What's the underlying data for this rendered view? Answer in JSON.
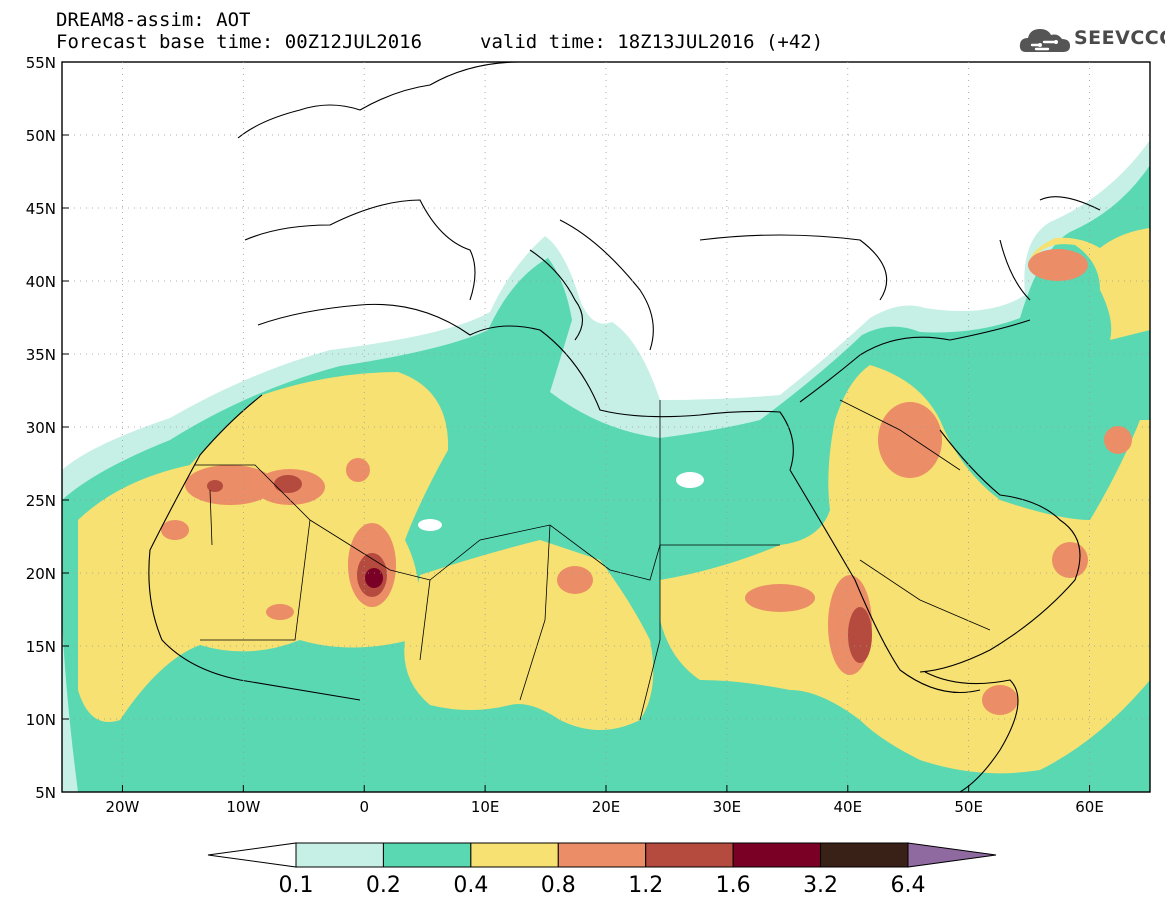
{
  "header": {
    "line1": "DREAM8-assim: AOT",
    "line2": "Forecast base time: 00Z12JUL2016",
    "line3": "valid time: 18Z13JUL2016 (+42)"
  },
  "logo": {
    "text": "SEEVCCC",
    "icon": "cloud-icon"
  },
  "map": {
    "lon_min": -25,
    "lon_max": 65,
    "lat_min": 5,
    "lat_max": 55,
    "lat_ticks": [
      {
        "value": 55,
        "label": "55N"
      },
      {
        "value": 50,
        "label": "50N"
      },
      {
        "value": 45,
        "label": "45N"
      },
      {
        "value": 40,
        "label": "40N"
      },
      {
        "value": 35,
        "label": "35N"
      },
      {
        "value": 30,
        "label": "30N"
      },
      {
        "value": 25,
        "label": "25N"
      },
      {
        "value": 20,
        "label": "20N"
      },
      {
        "value": 15,
        "label": "15N"
      },
      {
        "value": 10,
        "label": "10N"
      },
      {
        "value": 5,
        "label": "5N"
      }
    ],
    "lon_ticks": [
      {
        "value": -20,
        "label": "20W"
      },
      {
        "value": -10,
        "label": "10W"
      },
      {
        "value": 0,
        "label": "0"
      },
      {
        "value": 10,
        "label": "10E"
      },
      {
        "value": 20,
        "label": "20E"
      },
      {
        "value": 30,
        "label": "30E"
      },
      {
        "value": 40,
        "label": "40E"
      },
      {
        "value": 50,
        "label": "50E"
      },
      {
        "value": 60,
        "label": "60E"
      }
    ]
  },
  "colorbar": {
    "colors": [
      "#ffffff",
      "#c6f0e6",
      "#5ad8b2",
      "#f7e172",
      "#eb8d66",
      "#b54a3e",
      "#7b0026",
      "#3a2117",
      "#8f6aa0"
    ],
    "labels": [
      "0.1",
      "0.2",
      "0.4",
      "0.8",
      "1.2",
      "1.6",
      "3.2",
      "6.4"
    ]
  }
}
